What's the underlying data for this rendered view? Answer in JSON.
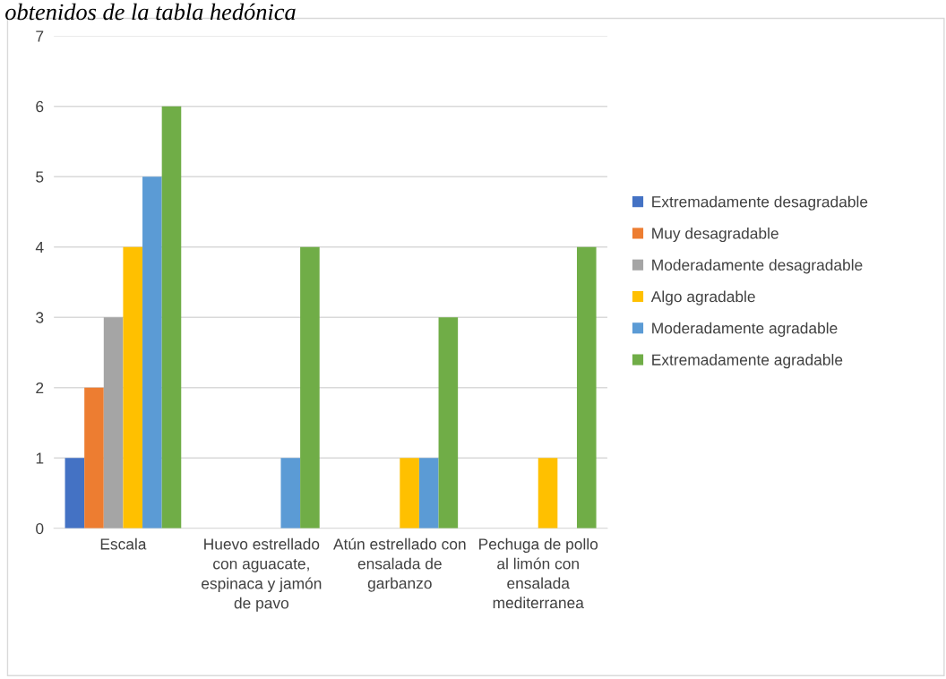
{
  "chart_data": {
    "type": "bar",
    "title": "obtenidos de la tabla hedónica",
    "categories": [
      "Escala",
      "Huevo estrellado con aguacate, espinaca y jamón de pavo",
      "Atún estrellado con ensalada de garbanzo",
      "Pechuga de pollo al limón con ensalada mediterranea"
    ],
    "series": [
      {
        "name": "Extremadamente desagradable",
        "color": "#4472c4",
        "values": [
          1,
          0,
          0,
          0
        ]
      },
      {
        "name": "Muy desagradable",
        "color": "#ed7d31",
        "values": [
          2,
          0,
          0,
          0
        ]
      },
      {
        "name": "Moderadamente desagradable",
        "color": "#a5a5a5",
        "values": [
          3,
          0,
          0,
          0
        ]
      },
      {
        "name": "Algo agradable",
        "color": "#ffc000",
        "values": [
          4,
          0,
          1,
          1
        ]
      },
      {
        "name": "Moderadamente agradable",
        "color": "#5b9bd5",
        "values": [
          5,
          1,
          1,
          0
        ]
      },
      {
        "name": "Extremadamente agradable",
        "color": "#70ad47",
        "values": [
          6,
          4,
          3,
          4
        ]
      }
    ],
    "ylim": [
      0,
      7
    ],
    "yticks": [
      0,
      1,
      2,
      3,
      4,
      5,
      6,
      7
    ],
    "grid": "y",
    "legend": "right"
  }
}
